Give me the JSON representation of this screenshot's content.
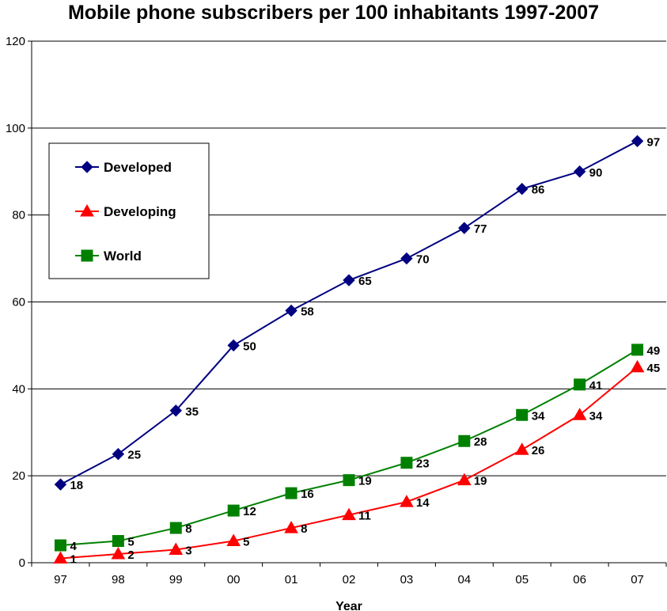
{
  "chart_data": {
    "type": "line",
    "title": "Mobile phone subscribers per 100 inhabitants 1997-2007",
    "xlabel": "Year",
    "ylabel": "",
    "categories": [
      "97",
      "98",
      "99",
      "00",
      "01",
      "02",
      "03",
      "04",
      "05",
      "06",
      "07"
    ],
    "ylim": [
      0,
      120
    ],
    "yticks": [
      0,
      20,
      40,
      60,
      80,
      100,
      120
    ],
    "grid": "horizontal",
    "legend_position": "top-left",
    "series": [
      {
        "name": "Developed",
        "color": "#000080",
        "marker": "diamond",
        "values": [
          18,
          25,
          35,
          50,
          58,
          65,
          70,
          77,
          86,
          90,
          97
        ]
      },
      {
        "name": "Developing",
        "color": "#ff0000",
        "marker": "triangle",
        "values": [
          1,
          2,
          3,
          5,
          8,
          11,
          14,
          19,
          26,
          34,
          45
        ]
      },
      {
        "name": "World",
        "color": "#008000",
        "marker": "square",
        "values": [
          4,
          5,
          8,
          12,
          16,
          19,
          23,
          28,
          34,
          41,
          49
        ]
      }
    ]
  }
}
